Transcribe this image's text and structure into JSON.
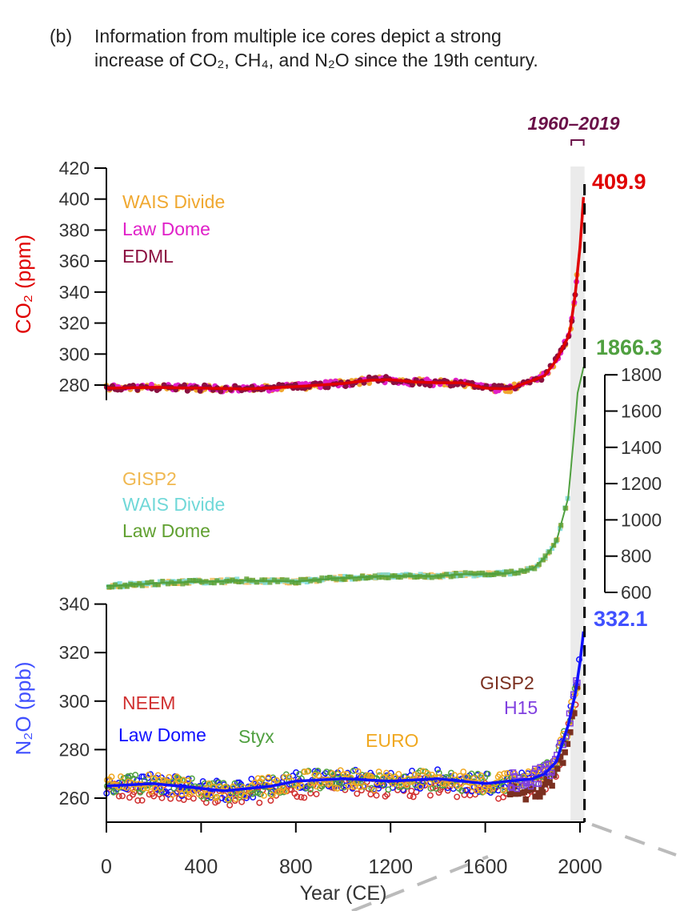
{
  "caption": {
    "label": "(b)",
    "line1": "Information from multiple ice cores depict a strong",
    "line2": "increase of CO₂, CH₄, and N₂O since the 19th century."
  },
  "chart_data": {
    "type": "line",
    "highlight_period": {
      "label": "1960–2019",
      "range": [
        1960,
        2019
      ],
      "color": "#6a1048"
    },
    "xaxis": {
      "label": "Year (CE)",
      "range": [
        0,
        2019
      ],
      "ticks": [
        0,
        400,
        800,
        1200,
        1600,
        2000
      ]
    },
    "panels": [
      {
        "gas": "CO2",
        "ylabel": "CO₂ (ppm)",
        "color": "#e00000",
        "axis_side": "left",
        "yrange": [
          270,
          420
        ],
        "ticks": [
          280,
          300,
          320,
          340,
          360,
          380,
          400,
          420
        ],
        "end_value": "409.9",
        "records": [
          {
            "name": "WAIS Divide",
            "color": "#f0a830"
          },
          {
            "name": "Law Dome",
            "color": "#e020c8"
          },
          {
            "name": "EDML",
            "color": "#8b1040"
          }
        ],
        "smooth": {
          "x": [
            0,
            200,
            400,
            600,
            800,
            1000,
            1100,
            1200,
            1300,
            1400,
            1500,
            1600,
            1700,
            1800,
            1850,
            1900,
            1950,
            1960,
            1980,
            2000,
            2019
          ],
          "y": [
            278,
            278.5,
            278,
            277.5,
            279,
            281,
            283,
            283.5,
            282,
            281.5,
            281.5,
            278,
            277.5,
            283,
            286,
            296,
            311,
            317,
            339,
            369,
            409.9
          ]
        }
      },
      {
        "gas": "CH4",
        "ylabel": "",
        "color": "#50a040",
        "axis_side": "right",
        "yrange": [
          600,
          1800
        ],
        "ticks": [
          600,
          800,
          1000,
          1200,
          1400,
          1600,
          1800
        ],
        "end_value": "1866.3",
        "records": [
          {
            "name": "GISP2",
            "color": "#f0b850"
          },
          {
            "name": "WAIS Divide",
            "color": "#70d8d8"
          },
          {
            "name": "Law Dome",
            "color": "#60a030"
          }
        ],
        "smooth": {
          "x": [
            0,
            200,
            400,
            600,
            800,
            1000,
            1200,
            1400,
            1500,
            1600,
            1700,
            1800,
            1850,
            1900,
            1950,
            1970,
            1990,
            2019
          ],
          "y": [
            635,
            650,
            660,
            665,
            660,
            680,
            690,
            690,
            700,
            700,
            705,
            730,
            790,
            880,
            1120,
            1400,
            1700,
            1866.3
          ]
        }
      },
      {
        "gas": "N2O",
        "ylabel": "N₂O (ppb)",
        "color": "#4050ff",
        "axis_side": "left",
        "yrange": [
          250,
          340
        ],
        "ticks": [
          260,
          280,
          300,
          320,
          340
        ],
        "end_value": "332.1",
        "records": [
          {
            "name": "NEEM",
            "color": "#d03030"
          },
          {
            "name": "Law Dome",
            "color": "#1010ff"
          },
          {
            "name": "Styx",
            "color": "#50a040"
          },
          {
            "name": "EURO",
            "color": "#f0a820"
          },
          {
            "name": "GISP2",
            "color": "#7b3020"
          },
          {
            "name": "H15",
            "color": "#8040e0"
          }
        ],
        "smooth": {
          "x": [
            0,
            200,
            400,
            500,
            600,
            700,
            800,
            1000,
            1200,
            1400,
            1600,
            1700,
            1800,
            1850,
            1900,
            1950,
            1980,
            2000,
            2019
          ],
          "y": [
            265,
            266,
            264,
            263,
            264,
            265,
            267,
            268,
            267,
            268,
            266,
            267,
            268,
            270,
            275,
            290,
            303,
            316,
            332.1
          ]
        }
      }
    ]
  }
}
